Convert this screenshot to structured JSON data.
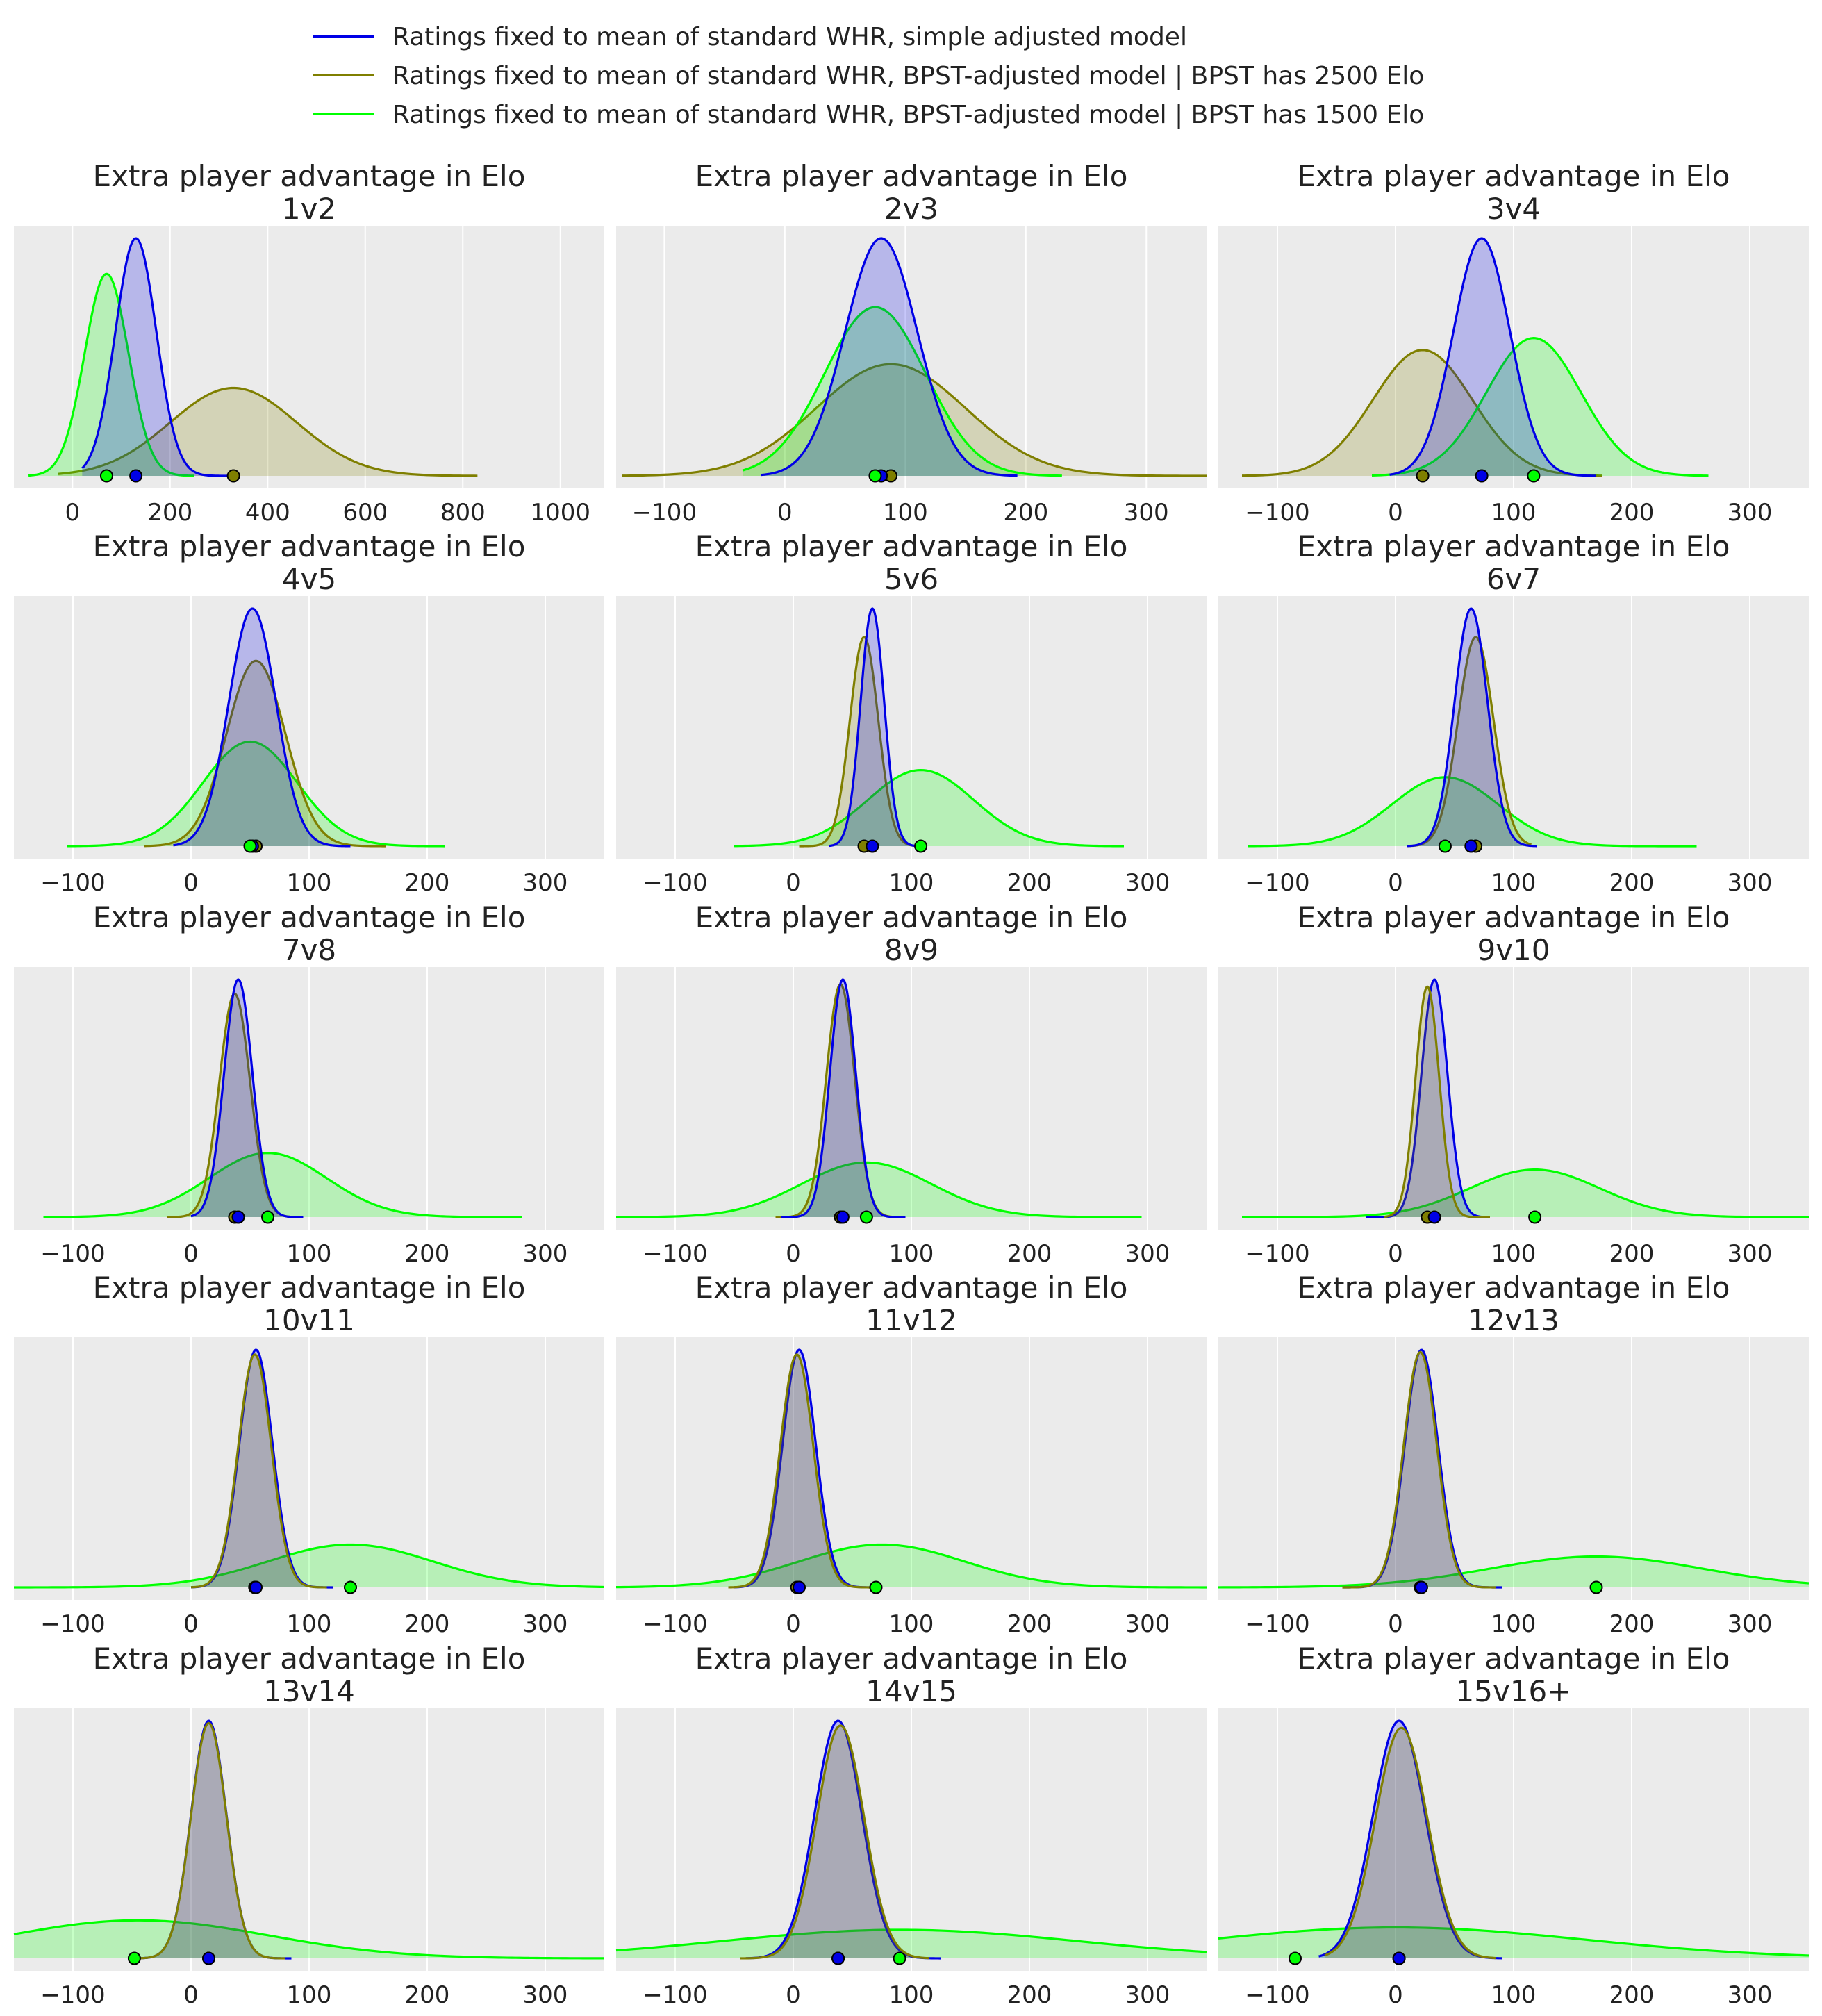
{
  "legend": {
    "placement": "top-center",
    "entries": [
      {
        "label": "Ratings fixed to mean of standard WHR, simple adjusted model",
        "color": "#0000e6"
      },
      {
        "label": "Ratings fixed to mean of standard WHR, BPST-adjusted model | BPST has 2500 Elo",
        "color": "#7f7f00"
      },
      {
        "label": "Ratings fixed to mean of standard WHR, BPST-adjusted model | BPST has 1500 Elo",
        "color": "#00ff00"
      }
    ]
  },
  "colors": {
    "background": "#ebebeb",
    "grid": "#ffffff"
  },
  "chart_data": [
    {
      "type": "area",
      "title": "Extra player advantage in Elo",
      "subtitle": "1v2",
      "xlim": [
        -120,
        1090
      ],
      "xticks": [
        0,
        200,
        400,
        600,
        800,
        1000
      ],
      "grid": true,
      "series": [
        {
          "color": "#0000e6",
          "mean": 130,
          "sd": 42,
          "range": [
            20,
            330
          ],
          "height": 1.0,
          "point": 130
        },
        {
          "color": "#7f7f00",
          "mean": 330,
          "sd": 130,
          "range": [
            -30,
            830
          ],
          "height": 0.37,
          "point": 330
        },
        {
          "color": "#00ff00",
          "mean": 70,
          "sd": 45,
          "range": [
            -90,
            250
          ],
          "height": 0.85,
          "point": 70
        }
      ]
    },
    {
      "type": "area",
      "title": "Extra player advantage in Elo",
      "subtitle": "2v3",
      "xlim": [
        -140,
        350
      ],
      "xticks": [
        -100,
        0,
        100,
        200,
        300
      ],
      "grid": true,
      "series": [
        {
          "color": "#0000e6",
          "mean": 80,
          "sd": 30,
          "range": [
            -20,
            193
          ],
          "height": 1.0,
          "point": 80
        },
        {
          "color": "#7f7f00",
          "mean": 88,
          "sd": 62,
          "range": [
            -135,
            350
          ],
          "height": 0.47,
          "point": 88
        },
        {
          "color": "#00ff00",
          "mean": 75,
          "sd": 42,
          "range": [
            -35,
            230
          ],
          "height": 0.71,
          "point": 75
        }
      ]
    },
    {
      "type": "area",
      "title": "Extra player advantage in Elo",
      "subtitle": "3v4",
      "xlim": [
        -150,
        350
      ],
      "xticks": [
        -100,
        0,
        100,
        200,
        300
      ],
      "grid": true,
      "series": [
        {
          "color": "#0000e6",
          "mean": 73,
          "sd": 24,
          "range": [
            -5,
            170
          ],
          "height": 1.0,
          "point": 73
        },
        {
          "color": "#7f7f00",
          "mean": 23,
          "sd": 42,
          "range": [
            -130,
            175
          ],
          "height": 0.53,
          "point": 23
        },
        {
          "color": "#00ff00",
          "mean": 117,
          "sd": 40,
          "range": [
            -20,
            265
          ],
          "height": 0.58,
          "point": 117
        }
      ]
    },
    {
      "type": "area",
      "title": "Extra player advantage in Elo",
      "subtitle": "4v5",
      "xlim": [
        -150,
        350
      ],
      "xticks": [
        -100,
        0,
        100,
        200,
        300
      ],
      "grid": true,
      "series": [
        {
          "color": "#0000e6",
          "mean": 52,
          "sd": 20,
          "range": [
            -15,
            135
          ],
          "height": 1.0,
          "point": 52
        },
        {
          "color": "#7f7f00",
          "mean": 55,
          "sd": 25,
          "range": [
            -40,
            165
          ],
          "height": 0.78,
          "point": 55
        },
        {
          "color": "#00ff00",
          "mean": 50,
          "sd": 40,
          "range": [
            -105,
            215
          ],
          "height": 0.44,
          "point": 50
        }
      ]
    },
    {
      "type": "area",
      "title": "Extra player advantage in Elo",
      "subtitle": "5v6",
      "xlim": [
        -150,
        350
      ],
      "xticks": [
        -100,
        0,
        100,
        200,
        300
      ],
      "grid": true,
      "series": [
        {
          "color": "#0000e6",
          "mean": 67,
          "sd": 10,
          "range": [
            30,
            110
          ],
          "height": 1.0,
          "point": 67
        },
        {
          "color": "#7f7f00",
          "mean": 60,
          "sd": 12,
          "range": [
            5,
            110
          ],
          "height": 0.88,
          "point": 60
        },
        {
          "color": "#00ff00",
          "mean": 108,
          "sd": 45,
          "range": [
            -50,
            280
          ],
          "height": 0.32,
          "point": 108
        }
      ]
    },
    {
      "type": "area",
      "title": "Extra player advantage in Elo",
      "subtitle": "6v7",
      "xlim": [
        -150,
        350
      ],
      "xticks": [
        -100,
        0,
        100,
        200,
        300
      ],
      "grid": true,
      "series": [
        {
          "color": "#0000e6",
          "mean": 64,
          "sd": 14,
          "range": [
            10,
            120
          ],
          "height": 1.0,
          "point": 64
        },
        {
          "color": "#7f7f00",
          "mean": 68,
          "sd": 15,
          "range": [
            10,
            115
          ],
          "height": 0.88,
          "point": 68
        },
        {
          "color": "#00ff00",
          "mean": 42,
          "sd": 45,
          "range": [
            -125,
            255
          ],
          "height": 0.29,
          "point": 42
        }
      ]
    },
    {
      "type": "area",
      "title": "Extra player advantage in Elo",
      "subtitle": "7v8",
      "xlim": [
        -150,
        350
      ],
      "xticks": [
        -100,
        0,
        100,
        200,
        300
      ],
      "grid": true,
      "series": [
        {
          "color": "#0000e6",
          "mean": 40,
          "sd": 12,
          "range": [
            0,
            95
          ],
          "height": 1.0,
          "point": 40
        },
        {
          "color": "#7f7f00",
          "mean": 37,
          "sd": 13,
          "range": [
            -20,
            90
          ],
          "height": 0.94,
          "point": 37
        },
        {
          "color": "#00ff00",
          "mean": 65,
          "sd": 50,
          "range": [
            -125,
            280
          ],
          "height": 0.27,
          "point": 65
        }
      ]
    },
    {
      "type": "area",
      "title": "Extra player advantage in Elo",
      "subtitle": "8v9",
      "xlim": [
        -150,
        350
      ],
      "xticks": [
        -100,
        0,
        100,
        200,
        300
      ],
      "grid": true,
      "series": [
        {
          "color": "#0000e6",
          "mean": 42,
          "sd": 11,
          "range": [
            -10,
            95
          ],
          "height": 1.0,
          "point": 42
        },
        {
          "color": "#7f7f00",
          "mean": 40,
          "sd": 12,
          "range": [
            -15,
            95
          ],
          "height": 0.98,
          "point": 40
        },
        {
          "color": "#00ff00",
          "mean": 62,
          "sd": 55,
          "range": [
            -150,
            295
          ],
          "height": 0.23,
          "point": 62
        }
      ]
    },
    {
      "type": "area",
      "title": "Extra player advantage in Elo",
      "subtitle": "9v10",
      "xlim": [
        -150,
        350
      ],
      "xticks": [
        -100,
        0,
        100,
        200,
        300
      ],
      "grid": true,
      "series": [
        {
          "color": "#0000e6",
          "mean": 33,
          "sd": 11,
          "range": [
            -25,
            80
          ],
          "height": 1.0,
          "point": 33
        },
        {
          "color": "#7f7f00",
          "mean": 27,
          "sd": 10,
          "range": [
            -10,
            80
          ],
          "height": 0.97,
          "point": 27
        },
        {
          "color": "#00ff00",
          "mean": 118,
          "sd": 55,
          "range": [
            -130,
            350
          ],
          "height": 0.2,
          "point": 118
        }
      ]
    },
    {
      "type": "area",
      "title": "Extra player advantage in Elo",
      "subtitle": "10v11",
      "xlim": [
        -150,
        350
      ],
      "xticks": [
        -100,
        0,
        100,
        200,
        300
      ],
      "grid": true,
      "series": [
        {
          "color": "#0000e6",
          "mean": 55,
          "sd": 14,
          "range": [
            0,
            120
          ],
          "height": 1.0,
          "point": 55
        },
        {
          "color": "#7f7f00",
          "mean": 54,
          "sd": 14,
          "range": [
            0,
            115
          ],
          "height": 0.98,
          "point": 54
        },
        {
          "color": "#00ff00",
          "mean": 135,
          "sd": 70,
          "range": [
            -150,
            350
          ],
          "height": 0.18,
          "point": 135
        }
      ]
    },
    {
      "type": "area",
      "title": "Extra player advantage in Elo",
      "subtitle": "11v12",
      "xlim": [
        -150,
        350
      ],
      "xticks": [
        -100,
        0,
        100,
        200,
        300
      ],
      "grid": true,
      "series": [
        {
          "color": "#0000e6",
          "mean": 5,
          "sd": 14,
          "range": [
            -50,
            70
          ],
          "height": 1.0,
          "point": 5
        },
        {
          "color": "#7f7f00",
          "mean": 3,
          "sd": 14,
          "range": [
            -55,
            65
          ],
          "height": 0.98,
          "point": 3
        },
        {
          "color": "#00ff00",
          "mean": 75,
          "sd": 70,
          "range": [
            -150,
            350
          ],
          "height": 0.18,
          "point": 70
        }
      ]
    },
    {
      "type": "area",
      "title": "Extra player advantage in Elo",
      "subtitle": "12v13",
      "xlim": [
        -150,
        350
      ],
      "xticks": [
        -100,
        0,
        100,
        200,
        300
      ],
      "grid": true,
      "series": [
        {
          "color": "#0000e6",
          "mean": 22,
          "sd": 14,
          "range": [
            -45,
            90
          ],
          "height": 1.0,
          "point": 22
        },
        {
          "color": "#7f7f00",
          "mean": 21,
          "sd": 14,
          "range": [
            -45,
            85
          ],
          "height": 0.99,
          "point": 21
        },
        {
          "color": "#00ff00",
          "mean": 170,
          "sd": 90,
          "range": [
            -150,
            350
          ],
          "height": 0.13,
          "point": 170
        }
      ]
    },
    {
      "type": "area",
      "title": "Extra player advantage in Elo",
      "subtitle": "13v14",
      "xlim": [
        -150,
        350
      ],
      "xticks": [
        -100,
        0,
        100,
        200,
        300
      ],
      "grid": true,
      "series": [
        {
          "color": "#0000e6",
          "mean": 15,
          "sd": 15,
          "range": [
            -50,
            85
          ],
          "height": 1.0,
          "point": 15
        },
        {
          "color": "#7f7f00",
          "mean": 15,
          "sd": 15,
          "range": [
            -50,
            80
          ],
          "height": 0.99,
          "point": 15
        },
        {
          "color": "#00ff00",
          "mean": -45,
          "sd": 110,
          "range": [
            -150,
            350
          ],
          "height": 0.16,
          "point": -48
        }
      ]
    },
    {
      "type": "area",
      "title": "Extra player advantage in Elo",
      "subtitle": "14v15",
      "xlim": [
        -150,
        350
      ],
      "xticks": [
        -100,
        0,
        100,
        200,
        300
      ],
      "grid": true,
      "series": [
        {
          "color": "#0000e6",
          "mean": 38,
          "sd": 20,
          "range": [
            -40,
            125
          ],
          "height": 1.0,
          "point": 38
        },
        {
          "color": "#7f7f00",
          "mean": 40,
          "sd": 20,
          "range": [
            -45,
            115
          ],
          "height": 0.98,
          "point": 38
        },
        {
          "color": "#00ff00",
          "mean": 90,
          "sd": 150,
          "range": [
            -150,
            350
          ],
          "height": 0.12,
          "point": 90
        }
      ]
    },
    {
      "type": "area",
      "title": "Extra player advantage in Elo",
      "subtitle": "15v16+",
      "xlim": [
        -150,
        350
      ],
      "xticks": [
        -100,
        0,
        100,
        200,
        300
      ],
      "grid": true,
      "series": [
        {
          "color": "#0000e6",
          "mean": 3,
          "sd": 22,
          "range": [
            -65,
            90
          ],
          "height": 1.0,
          "point": 3
        },
        {
          "color": "#7f7f00",
          "mean": 5,
          "sd": 22,
          "range": [
            -60,
            85
          ],
          "height": 0.97,
          "point": 3
        },
        {
          "color": "#00ff00",
          "mean": 0,
          "sd": 160,
          "range": [
            -150,
            350
          ],
          "height": 0.13,
          "point": -85
        }
      ]
    }
  ]
}
